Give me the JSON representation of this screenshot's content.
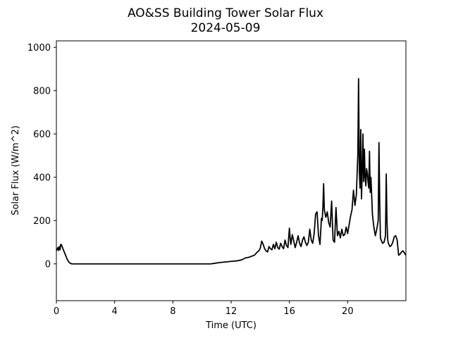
{
  "chart_data": {
    "type": "line",
    "title": "AO&SS Building Tower Solar Flux",
    "subtitle": "2024-05-09",
    "xlabel": "Time (UTC)",
    "ylabel": "Solar Flux (W/m^2)",
    "xlim": [
      0,
      24
    ],
    "ylim": [
      -170,
      1030
    ],
    "xticks": [
      0,
      4,
      8,
      12,
      16,
      20
    ],
    "yticks": [
      0,
      200,
      400,
      600,
      800,
      1000
    ],
    "grid": false,
    "series": [
      {
        "color": "#000000",
        "x": [
          0,
          0.1,
          0.15,
          0.2,
          0.25,
          0.3,
          0.35,
          0.45,
          0.6,
          0.75,
          0.9,
          1.05,
          1.2,
          2,
          4,
          6,
          8,
          9,
          10,
          10.6,
          10.9,
          11.2,
          11.5,
          11.8,
          12.1,
          12.4,
          12.7,
          13.0,
          13.2,
          13.4,
          13.6,
          13.8,
          13.9,
          14.0,
          14.1,
          14.2,
          14.3,
          14.4,
          14.5,
          14.6,
          14.7,
          14.8,
          14.9,
          15.0,
          15.1,
          15.2,
          15.3,
          15.4,
          15.5,
          15.6,
          15.7,
          15.8,
          15.9,
          16.0,
          16.05,
          16.1,
          16.2,
          16.3,
          16.4,
          16.5,
          16.6,
          16.7,
          16.8,
          16.9,
          17.0,
          17.1,
          17.2,
          17.3,
          17.4,
          17.5,
          17.6,
          17.7,
          17.8,
          17.9,
          18.0,
          18.1,
          18.2,
          18.25,
          18.3,
          18.35,
          18.4,
          18.5,
          18.6,
          18.7,
          18.8,
          18.9,
          19.0,
          19.1,
          19.2,
          19.3,
          19.4,
          19.5,
          19.6,
          19.7,
          19.8,
          19.9,
          20.0,
          20.1,
          20.2,
          20.3,
          20.4,
          20.5,
          20.6,
          20.7,
          20.75,
          20.8,
          20.85,
          20.9,
          20.95,
          21.0,
          21.05,
          21.1,
          21.15,
          21.2,
          21.25,
          21.3,
          21.35,
          21.4,
          21.45,
          21.5,
          21.55,
          21.6,
          21.7,
          21.8,
          21.9,
          22.0,
          22.1,
          22.15,
          22.2,
          22.25,
          22.3,
          22.4,
          22.5,
          22.6,
          22.65,
          22.7,
          22.75,
          22.8,
          22.9,
          23.0,
          23.1,
          23.2,
          23.3,
          23.4,
          23.5,
          23.6,
          23.7,
          23.8,
          24.0
        ],
        "y": [
          60,
          75,
          62,
          80,
          65,
          90,
          88,
          70,
          45,
          20,
          5,
          0,
          0,
          0,
          0,
          0,
          0,
          0,
          0,
          0,
          3,
          6,
          8,
          10,
          12,
          14,
          18,
          28,
          30,
          35,
          40,
          55,
          60,
          72,
          105,
          90,
          70,
          60,
          55,
          80,
          70,
          65,
          90,
          70,
          100,
          75,
          68,
          95,
          80,
          70,
          110,
          85,
          75,
          165,
          120,
          90,
          135,
          105,
          75,
          100,
          130,
          95,
          80,
          110,
          125,
          100,
          85,
          100,
          160,
          110,
          95,
          140,
          230,
          240,
          130,
          90,
          210,
          200,
          260,
          370,
          250,
          215,
          240,
          190,
          170,
          290,
          110,
          100,
          260,
          130,
          150,
          120,
          160,
          130,
          135,
          170,
          140,
          180,
          220,
          250,
          340,
          270,
          320,
          510,
          855,
          430,
          350,
          620,
          300,
          420,
          600,
          380,
          530,
          400,
          360,
          440,
          420,
          380,
          350,
          520,
          330,
          400,
          230,
          170,
          130,
          160,
          200,
          560,
          300,
          120,
          110,
          95,
          100,
          130,
          415,
          200,
          110,
          95,
          80,
          85,
          100,
          125,
          130,
          110,
          40,
          45,
          55,
          60,
          40
        ]
      }
    ]
  }
}
